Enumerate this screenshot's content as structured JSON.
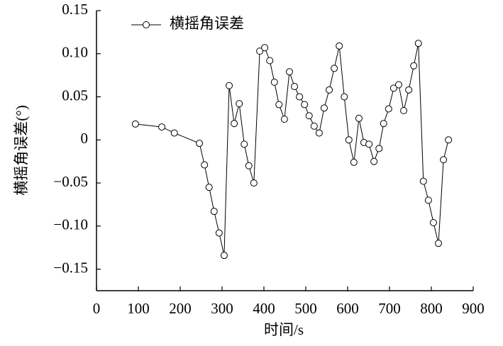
{
  "chart_data": {
    "type": "line",
    "xlabel": "时间/s",
    "ylabel": "横摇角误差(°)",
    "x": [
      93,
      156,
      186,
      246,
      258,
      269,
      281,
      293,
      305,
      317,
      329,
      341,
      353,
      364,
      376,
      390,
      402,
      414,
      425,
      436,
      449,
      461,
      473,
      485,
      497,
      508,
      520,
      532,
      544,
      556,
      568,
      580,
      592,
      603,
      615,
      627,
      639,
      651,
      663,
      675,
      686,
      698,
      710,
      722,
      734,
      746,
      758,
      769,
      781,
      793,
      805,
      817,
      829,
      841
    ],
    "series": [
      {
        "name": "横摇角误差",
        "color": "#000000",
        "values": [
          0.0185,
          0.015,
          0.008,
          -0.004,
          -0.029,
          -0.055,
          -0.083,
          -0.108,
          -0.134,
          0.063,
          0.019,
          0.042,
          -0.005,
          -0.03,
          -0.05,
          0.103,
          0.107,
          0.092,
          0.067,
          0.041,
          0.024,
          0.079,
          0.062,
          0.05,
          0.041,
          0.028,
          0.016,
          0.008,
          0.037,
          0.058,
          0.083,
          0.109,
          0.05,
          0.0,
          -0.026,
          0.025,
          -0.003,
          -0.005,
          -0.025,
          -0.01,
          0.019,
          0.036,
          0.06,
          0.064,
          0.034,
          0.058,
          0.086,
          0.112,
          -0.048,
          -0.07,
          -0.096,
          -0.12,
          -0.023,
          0.0
        ]
      }
    ],
    "xlim": [
      0,
      900
    ],
    "xticks": [
      0,
      100,
      200,
      300,
      400,
      500,
      600,
      700,
      800,
      900
    ],
    "ylim": [
      -0.175,
      0.15
    ],
    "yticks": [
      {
        "value": -0.15,
        "label": "−0.15"
      },
      {
        "value": -0.1,
        "label": "−0.10"
      },
      {
        "value": -0.05,
        "label": "−0.05"
      },
      0,
      0.05,
      {
        "value": 0.1,
        "label": "0.10"
      },
      0.15
    ],
    "grid": false,
    "legend": "upper left"
  }
}
